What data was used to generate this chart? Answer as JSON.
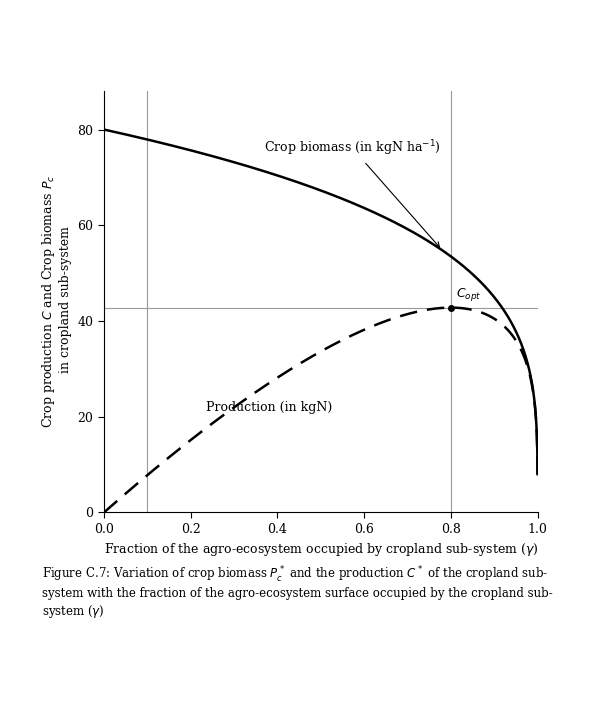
{
  "xlim": [
    0.0,
    1.0
  ],
  "ylim": [
    0,
    88
  ],
  "yticks": [
    0,
    20,
    40,
    60,
    80
  ],
  "xticks": [
    0.0,
    0.2,
    0.4,
    0.6,
    0.8,
    1.0
  ],
  "biomass_label": "Crop biomass (in kgN ha$^{-1}$)",
  "production_label": "Production (in kgN)",
  "copt_label": "$C_{opt}$",
  "gamma_opt": 0.8,
  "P0": 80.0,
  "alpha": 0.25,
  "vline_x2": 0.1,
  "background_color": "#ffffff",
  "curve_color": "#000000",
  "refline_color": "#999999",
  "figsize": [
    5.94,
    7.02
  ],
  "dpi": 100
}
